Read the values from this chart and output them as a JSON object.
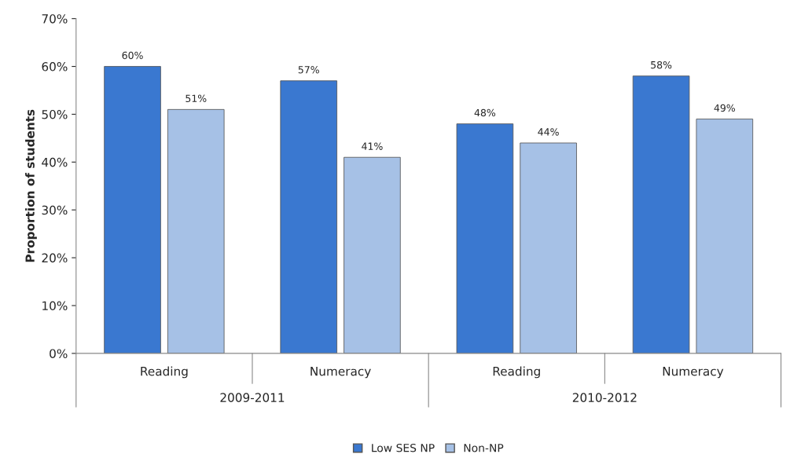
{
  "chart_data": {
    "type": "bar",
    "ylabel": "Proportion of students",
    "categories": [
      "Reading",
      "Numeracy",
      "Reading",
      "Numeracy"
    ],
    "series": [
      {
        "name": "Low SES NP",
        "color": "#3a78d0",
        "values": [
          60,
          57,
          48,
          58
        ]
      },
      {
        "name": "Non-NP",
        "color": "#a6c1e6",
        "values": [
          51,
          41,
          44,
          49
        ]
      }
    ],
    "ylim": [
      0,
      70
    ],
    "yticks": [
      {
        "value": 0,
        "label": "0%"
      },
      {
        "value": 10,
        "label": "10%"
      },
      {
        "value": 20,
        "label": "20%"
      },
      {
        "value": 30,
        "label": "30%"
      },
      {
        "value": 40,
        "label": "40%"
      },
      {
        "value": 50,
        "label": "50%"
      },
      {
        "value": 60,
        "label": "60%"
      },
      {
        "value": 70,
        "label": "70%"
      }
    ],
    "value_labels": [
      [
        "60%",
        "57%",
        "48%",
        "58%"
      ],
      [
        "51%",
        "41%",
        "44%",
        "49%"
      ]
    ],
    "annotations": [
      "2009-2011",
      "2010-2012"
    ],
    "grid": false,
    "legend": "bottom"
  }
}
